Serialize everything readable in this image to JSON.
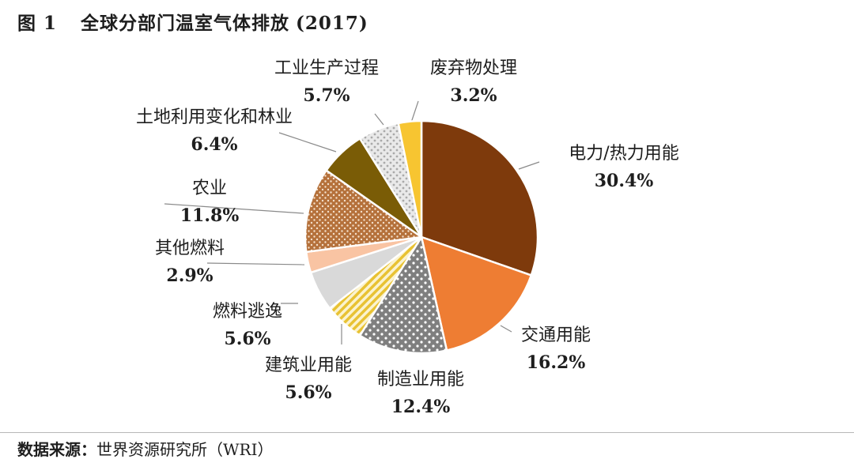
{
  "figure": {
    "number": "图 1",
    "title": "全球分部门温室气体排放",
    "year": "(2017)"
  },
  "source": {
    "label": "数据来源：",
    "text": "世界资源研究所（WRI）"
  },
  "chart_data": {
    "type": "pie",
    "title": "全球分部门温室气体排放 (2017)",
    "slices": [
      {
        "label": "电力/热力用能",
        "value": 30.4,
        "display": "30.4%",
        "color": "#7e3a0c",
        "pattern": "solid"
      },
      {
        "label": "交通用能",
        "value": 16.2,
        "display": "16.2%",
        "color": "#ee7d33",
        "pattern": "solid"
      },
      {
        "label": "制造业用能",
        "value": 12.4,
        "display": "12.4%",
        "color": "#7f7f7f",
        "pattern": "white-dots"
      },
      {
        "label": "建筑业用能",
        "value": 5.6,
        "display": "5.6%",
        "color": "#f2d04a",
        "pattern": "diagonal-stripes"
      },
      {
        "label": "燃料逃逸",
        "value": 5.6,
        "display": "5.6%",
        "color": "#d9d9d9",
        "pattern": "solid"
      },
      {
        "label": "其他燃料",
        "value": 2.9,
        "display": "2.9%",
        "color": "#f9c4a3",
        "pattern": "solid"
      },
      {
        "label": "农业",
        "value": 11.8,
        "display": "11.8%",
        "color": "#b5713b",
        "pattern": "light-dots"
      },
      {
        "label": "土地利用变化和林业",
        "value": 6.4,
        "display": "6.4%",
        "color": "#7a5c06",
        "pattern": "solid"
      },
      {
        "label": "工业生产过程",
        "value": 5.7,
        "display": "5.7%",
        "color": "#dedede",
        "pattern": "grey-dots"
      },
      {
        "label": "废弃物处理",
        "value": 3.2,
        "display": "3.2%",
        "color": "#f7c531",
        "pattern": "solid"
      }
    ]
  }
}
